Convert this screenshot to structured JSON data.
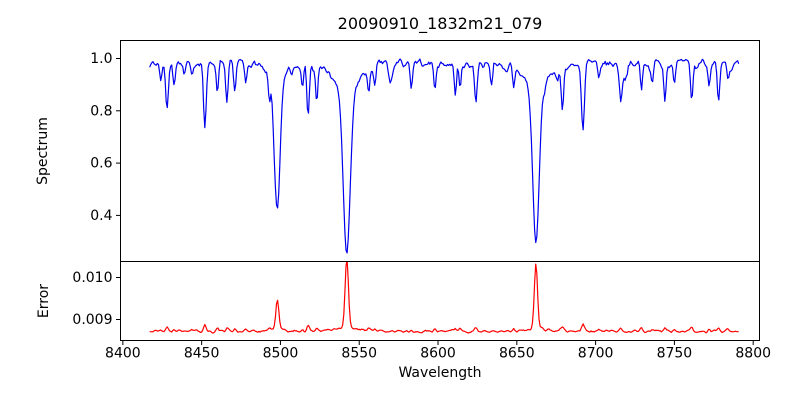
{
  "chart_data": [
    {
      "type": "line",
      "title": "20090910_1832m21_079",
      "ylabel": "Spectrum",
      "xlabel": "",
      "xlim": [
        8398.5,
        8804
      ],
      "ylim": [
        0.2237,
        1.0688
      ],
      "grid": false,
      "x_ticks": [
        {
          "v": 8400,
          "label": "8400"
        },
        {
          "v": 8450,
          "label": "8450"
        },
        {
          "v": 8500,
          "label": "8500"
        },
        {
          "v": 8550,
          "label": "8550"
        },
        {
          "v": 8600,
          "label": "8600"
        },
        {
          "v": 8650,
          "label": "8650"
        },
        {
          "v": 8700,
          "label": "8700"
        },
        {
          "v": 8750,
          "label": "8750"
        },
        {
          "v": 8800,
          "label": "8800"
        }
      ],
      "y_ticks": [
        {
          "v": 0.4,
          "label": "0.4"
        },
        {
          "v": 0.6,
          "label": "0.6"
        },
        {
          "v": 0.8,
          "label": "0.8"
        },
        {
          "v": 1.0,
          "label": "1.0"
        }
      ],
      "series": [
        {
          "name": "spectrum",
          "color": "#0000ee",
          "x_start": 8417,
          "x_end": 8791,
          "step": 0.7,
          "continuum": 0.981,
          "noise": {
            "seed": 7,
            "jitter": 0.021,
            "wave": 0.012,
            "dip": 0.13
          },
          "absorption_lines": [
            [
              8424,
              0.06,
              0.7
            ],
            [
              8428,
              0.17,
              0.8
            ],
            [
              8432.5,
              0.08,
              0.7
            ],
            [
              8439,
              0.045,
              0.7
            ],
            [
              8444,
              0.04,
              0.7
            ],
            [
              8452,
              0.245,
              0.85
            ],
            [
              8460,
              0.12,
              0.7
            ],
            [
              8466,
              0.17,
              0.8
            ],
            [
              8471,
              0.1,
              0.7
            ],
            [
              8478,
              0.08,
              0.7
            ],
            [
              8493,
              0.1,
              0.7
            ],
            [
              8498.02,
              0.46,
              1.8
            ],
            [
              8498.02,
              0.07,
              5.0
            ],
            [
              8514,
              0.08,
              0.7
            ],
            [
              8517.5,
              0.195,
              0.8
            ],
            [
              8523,
              0.15,
              0.75
            ],
            [
              8542.09,
              0.63,
              2.2
            ],
            [
              8542.09,
              0.11,
              8.0
            ],
            [
              8556,
              0.1,
              0.7
            ],
            [
              8560,
              0.08,
              0.7
            ],
            [
              8583,
              0.1,
              0.75
            ],
            [
              8598,
              0.08,
              0.7
            ],
            [
              8611,
              0.12,
              0.7
            ],
            [
              8614,
              0.1,
              0.7
            ],
            [
              8624,
              0.145,
              0.8
            ],
            [
              8634,
              0.06,
              0.7
            ],
            [
              8648,
              0.08,
              0.7
            ],
            [
              8662.14,
              0.6,
              2.0
            ],
            [
              8662.14,
              0.1,
              7.0
            ],
            [
              8679,
              0.17,
              0.8
            ],
            [
              8692,
              0.26,
              0.95
            ],
            [
              8702,
              0.07,
              0.7
            ],
            [
              8716,
              0.14,
              0.8
            ],
            [
              8729,
              0.1,
              0.7
            ],
            [
              8736,
              0.07,
              0.7
            ],
            [
              8744,
              0.12,
              0.7
            ],
            [
              8750,
              0.07,
              0.7
            ],
            [
              8761,
              0.14,
              0.75
            ],
            [
              8772,
              0.08,
              0.7
            ],
            [
              8778,
              0.15,
              0.8
            ],
            [
              8784,
              0.07,
              0.7
            ]
          ]
        }
      ]
    },
    {
      "type": "line",
      "title": "",
      "ylabel": "Error",
      "xlabel": "Wavelength",
      "xlim": [
        8398.5,
        8804
      ],
      "ylim": [
        0.0085,
        0.010381
      ],
      "grid": false,
      "y_ticks": [
        {
          "v": 0.009,
          "label": "0.009"
        },
        {
          "v": 0.01,
          "label": "0.010"
        }
      ],
      "series": [
        {
          "name": "error",
          "color": "#ff0000",
          "baseline": 0.00872,
          "noise": {
            "seed": 21,
            "amp": 2.2e-05
          },
          "peaks": [
            [
              8498.02,
              0.0007,
              0.95
            ],
            [
              8542.09,
              0.00165,
              1.05
            ],
            [
              8662.14,
              0.00158,
              1.0
            ]
          ],
          "weak_bump_scale": 0.0006
        }
      ]
    }
  ]
}
